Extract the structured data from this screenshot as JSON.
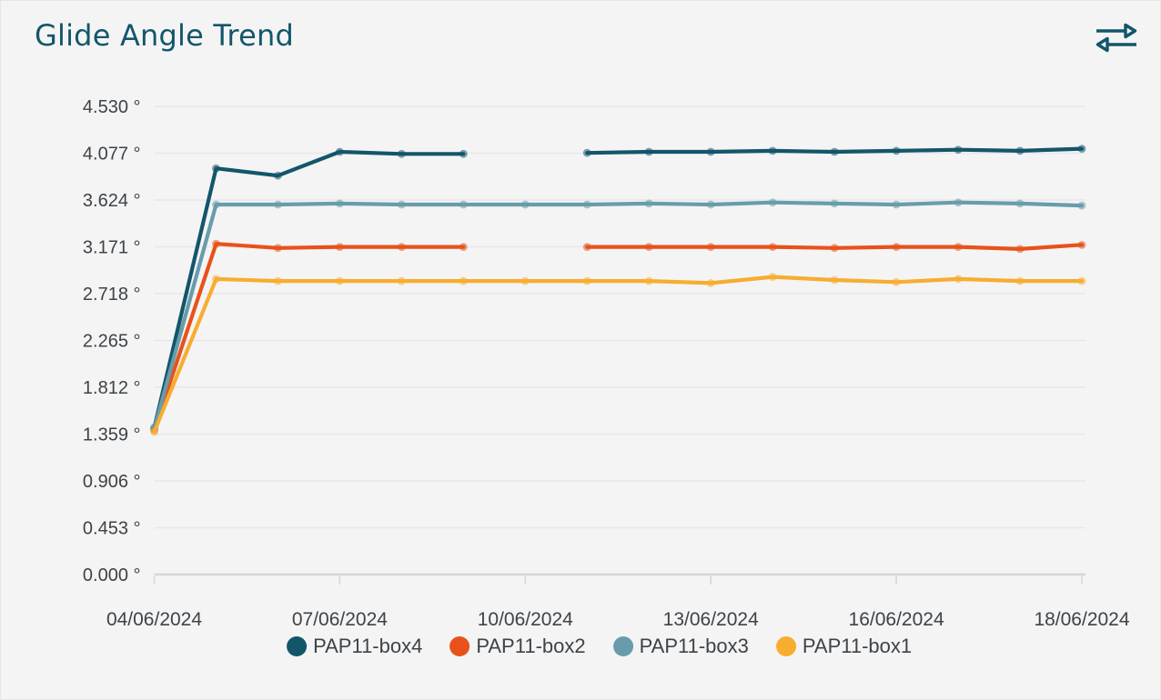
{
  "page": {
    "title": "Glide Angle Trend",
    "title_color": "#13566a",
    "background": "#f4f4f5",
    "icons": {
      "header": "swap-arrows-icon"
    }
  },
  "chart_data": {
    "type": "line",
    "title": "Glide Angle Trend",
    "grid": true,
    "legend_position": "bottom",
    "num_points": 16,
    "ylim": [
      0,
      4.53
    ],
    "y_ticks": [
      0.0,
      0.453,
      0.906,
      1.359,
      1.812,
      2.265,
      2.718,
      3.171,
      3.624,
      4.077,
      4.53
    ],
    "y_tick_suffix": " °",
    "x_tick_indices": [
      0,
      3,
      6,
      9,
      12,
      15
    ],
    "x_tick_labels": [
      "04/06/2024",
      "07/06/2024",
      "10/06/2024",
      "13/06/2024",
      "16/06/2024",
      "18/06/2024"
    ],
    "series": [
      {
        "name": "PAP11-box4",
        "color": "#13566a",
        "values": [
          1.42,
          3.93,
          3.86,
          4.09,
          4.07,
          4.07,
          null,
          4.08,
          4.09,
          4.09,
          4.1,
          4.09,
          4.1,
          4.11,
          4.1,
          4.12
        ]
      },
      {
        "name": "PAP11-box2",
        "color": "#e8521a",
        "values": [
          1.4,
          3.2,
          3.16,
          3.17,
          3.17,
          3.17,
          null,
          3.17,
          3.17,
          3.17,
          3.17,
          3.16,
          3.17,
          3.17,
          3.15,
          3.19
        ]
      },
      {
        "name": "PAP11-box3",
        "color": "#689cab",
        "values": [
          1.41,
          3.58,
          3.58,
          3.59,
          3.58,
          3.58,
          3.58,
          3.58,
          3.59,
          3.58,
          3.6,
          3.59,
          3.58,
          3.6,
          3.59,
          3.57
        ]
      },
      {
        "name": "PAP11-box1",
        "color": "#f7ad2f",
        "values": [
          1.38,
          2.86,
          2.84,
          2.84,
          2.84,
          2.84,
          2.84,
          2.84,
          2.84,
          2.82,
          2.88,
          2.85,
          2.83,
          2.86,
          2.84,
          2.84
        ]
      }
    ],
    "colors": {
      "grid_line": "#e7e7e9",
      "axis_line": "#d6d6d8",
      "tick_text": "#3d4347"
    }
  }
}
